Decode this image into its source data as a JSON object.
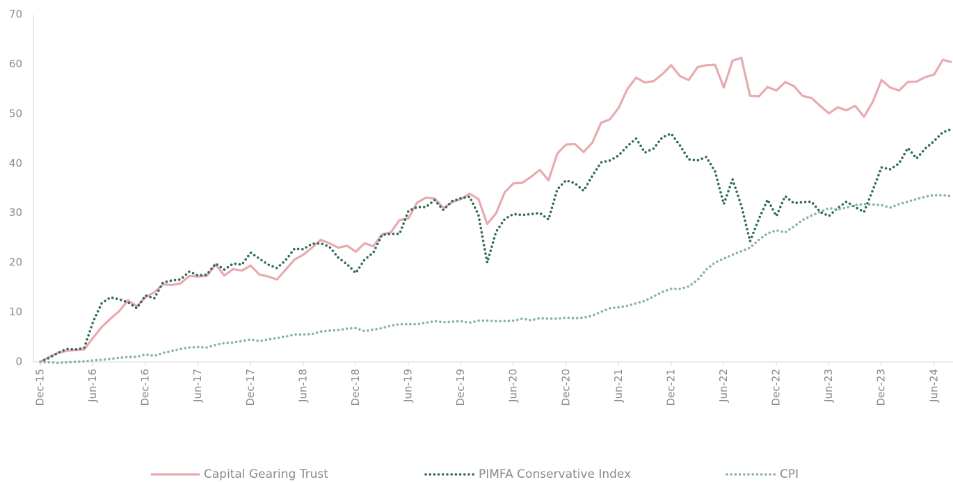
{
  "chart_data": {
    "type": "line",
    "categories": [
      "Dec-15",
      null,
      null,
      null,
      null,
      null,
      "Jun-16",
      null,
      null,
      null,
      null,
      null,
      "Dec-16",
      null,
      null,
      null,
      null,
      null,
      "Jun-17",
      null,
      null,
      null,
      null,
      null,
      "Dec-17",
      null,
      null,
      null,
      null,
      null,
      "Jun-18",
      null,
      null,
      null,
      null,
      null,
      "Dec-18",
      null,
      null,
      null,
      null,
      null,
      "Jun-19",
      null,
      null,
      null,
      null,
      null,
      "Dec-19",
      null,
      null,
      null,
      null,
      null,
      "Jun-20",
      null,
      null,
      null,
      null,
      null,
      "Dec-20",
      null,
      null,
      null,
      null,
      null,
      "Jun-21",
      null,
      null,
      null,
      null,
      null,
      "Dec-21",
      null,
      null,
      null,
      null,
      null,
      "Jun-22",
      null,
      null,
      null,
      null,
      null,
      "Dec-22",
      null,
      null,
      null,
      null,
      null,
      "Jun-23",
      null,
      null,
      null,
      null,
      null,
      "Dec-23",
      null,
      null,
      null,
      null,
      null,
      "Jun-24",
      null,
      null
    ],
    "series": [
      {
        "name": "Capital Gearing Trust",
        "color": "#e8aab0",
        "style": "solid",
        "values": [
          0,
          1,
          1.8,
          2.2,
          2.4,
          2.5,
          4.8,
          7,
          8.7,
          10.2,
          12.4,
          11.2,
          13,
          14,
          15.6,
          15.5,
          15.8,
          17.3,
          17.2,
          17.3,
          19.6,
          17.4,
          18.7,
          18.4,
          19.4,
          17.6,
          17.2,
          16.6,
          18.6,
          20.6,
          21.6,
          23,
          24.6,
          23.9,
          23,
          23.4,
          22.2,
          23.9,
          23.3,
          25.7,
          26.1,
          28.6,
          28.9,
          32.1,
          33.1,
          32.9,
          31,
          32.2,
          32.8,
          33.9,
          32.8,
          27.8,
          29.9,
          34.2,
          36,
          36.1,
          37.3,
          38.7,
          36.6,
          42,
          43.8,
          43.9,
          42.3,
          44.2,
          48.2,
          48.9,
          51.2,
          55,
          57.3,
          56.3,
          56.6,
          58,
          59.8,
          57.6,
          56.8,
          59.4,
          59.8,
          59.9,
          55.3,
          60.7,
          61.3,
          53.6,
          53.5,
          55.4,
          54.7,
          56.4,
          55.6,
          53.6,
          53.2,
          51.6,
          50.1,
          51.3,
          50.7,
          51.6,
          49.4,
          52.4,
          56.8,
          55.3,
          54.7,
          56.4,
          56.5,
          57.4,
          57.9,
          60.9,
          60.4
        ]
      },
      {
        "name": "PIMFA Conservative Index",
        "color": "#2f6b5b",
        "style": "dotted",
        "values": [
          0,
          0.8,
          1.8,
          2.6,
          2.5,
          2.8,
          8,
          11.8,
          13,
          12.6,
          12,
          10.8,
          13.4,
          12.8,
          16,
          16.4,
          16.6,
          18.2,
          17.4,
          17.6,
          19.8,
          18.6,
          19.8,
          19.6,
          22,
          20.8,
          19.6,
          18.9,
          20.5,
          22.8,
          22.7,
          23.8,
          23.9,
          23.2,
          21,
          19.7,
          17.9,
          20.6,
          22,
          25.6,
          25.8,
          25.8,
          30.4,
          31.2,
          31.2,
          32.6,
          30.6,
          32.4,
          33,
          33.3,
          29.6,
          20,
          26.2,
          28.8,
          29.8,
          29.6,
          29.8,
          30,
          28.7,
          34.8,
          36.6,
          36,
          34.5,
          37.5,
          40.2,
          40.6,
          41.6,
          43.5,
          45,
          42.2,
          43,
          45.3,
          46,
          43.6,
          40.8,
          40.6,
          41.3,
          38.4,
          31.8,
          36.8,
          31.5,
          24.3,
          28.8,
          32.7,
          29.4,
          33.4,
          32,
          32.2,
          32.3,
          30.2,
          29.4,
          31,
          32.3,
          31.2,
          30.2,
          34.6,
          39.2,
          38.8,
          40,
          43.1,
          41,
          43,
          44.5,
          46.3,
          46.9
        ]
      },
      {
        "name": "CPI",
        "color": "#86b3a5",
        "style": "dotted",
        "values": [
          0,
          -0.1,
          -0.2,
          -0.1,
          0,
          0.1,
          0.3,
          0.4,
          0.6,
          0.8,
          1,
          1,
          1.5,
          1.2,
          1.8,
          2.2,
          2.6,
          2.9,
          3,
          2.9,
          3.4,
          3.8,
          3.9,
          4.2,
          4.5,
          4.2,
          4.5,
          4.8,
          5.1,
          5.5,
          5.5,
          5.6,
          6.1,
          6.3,
          6.4,
          6.7,
          6.8,
          6.2,
          6.5,
          6.8,
          7.3,
          7.6,
          7.6,
          7.6,
          7.9,
          8.2,
          8,
          8.1,
          8.2,
          7.9,
          8.3,
          8.3,
          8.2,
          8.2,
          8.3,
          8.7,
          8.4,
          8.8,
          8.7,
          8.7,
          8.9,
          8.8,
          8.9,
          9.3,
          10.1,
          10.8,
          11,
          11.3,
          11.8,
          12.3,
          13.2,
          14.1,
          14.7,
          14.7,
          15.2,
          16.5,
          18.6,
          20,
          20.8,
          21.6,
          22.3,
          23,
          24.6,
          25.9,
          26.5,
          26.1,
          27.3,
          28.6,
          29.5,
          30.2,
          31,
          30.7,
          31.1,
          31.6,
          31.8,
          31.7,
          31.6,
          31.1,
          31.8,
          32.3,
          32.8,
          33.3,
          33.6,
          33.6,
          33.4
        ]
      }
    ],
    "ylim": [
      0,
      70
    ],
    "yticks": [
      0,
      10,
      20,
      30,
      40,
      50,
      60,
      70
    ],
    "grid": false,
    "legend": "bottom"
  }
}
